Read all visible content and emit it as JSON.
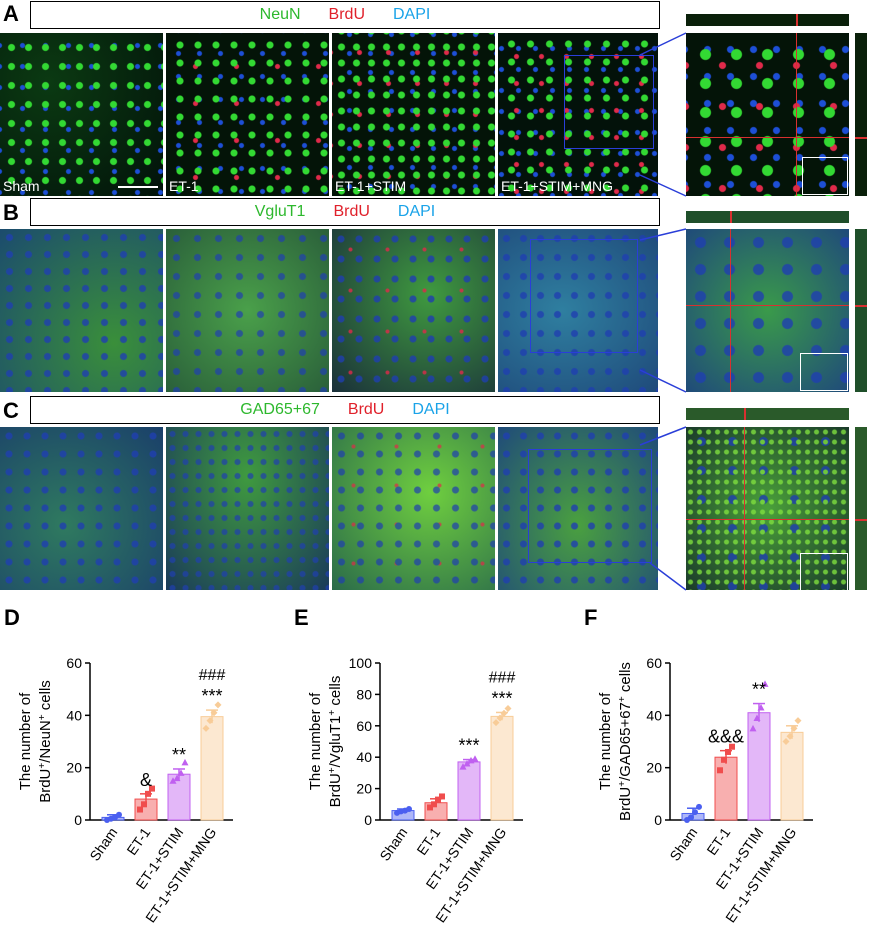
{
  "panels": {
    "A": {
      "letter": "A",
      "legend": [
        "NeuN",
        "BrdU",
        "DAPI"
      ],
      "groups": [
        "Sham",
        "ET-1",
        "ET-1+STIM",
        "ET-1+STIM+MNG"
      ]
    },
    "B": {
      "letter": "B",
      "legend": [
        "VgluT1",
        "BrdU",
        "DAPI"
      ]
    },
    "C": {
      "letter": "C",
      "legend": [
        "GAD65+67",
        "BrdU",
        "DAPI"
      ]
    }
  },
  "colors": {
    "green_label": "#2db82d",
    "red_label": "#e0212b",
    "blue_label": "#1aa3e8",
    "sham": "#4a5ff0",
    "et1": "#f04d4d",
    "stim": "#c060f0",
    "mng": "#f8cc98"
  },
  "chart_data": [
    {
      "letter": "D",
      "type": "bar",
      "categories": [
        "Sham",
        "ET-1",
        "ET-1+STIM",
        "ET-1+STIM+MNG"
      ],
      "values": [
        1,
        8,
        17.5,
        39.5
      ],
      "errors": [
        1,
        2,
        2,
        2.5
      ],
      "points": [
        [
          0,
          0.5,
          1,
          2
        ],
        [
          4,
          6,
          10,
          12
        ],
        [
          15,
          16,
          18,
          22
        ],
        [
          35,
          38,
          41,
          44
        ]
      ],
      "annotations": [
        "",
        "&",
        "**",
        "***"
      ],
      "top_annotations": [
        "",
        "",
        "",
        "###"
      ],
      "ylabel_l1": "The number of",
      "ylabel_l2_parts": [
        "BrdU",
        "+",
        "/NeuN",
        "+",
        " cells"
      ],
      "ylim": [
        0,
        60
      ],
      "yticks": [
        "0",
        "20",
        "40",
        "60"
      ]
    },
    {
      "letter": "E",
      "type": "bar",
      "categories": [
        "Sham",
        "ET-1",
        "ET-1+STIM",
        "ET-1+STIM+MNG"
      ],
      "values": [
        6,
        11,
        37,
        66
      ],
      "errors": [
        1,
        2.5,
        1.5,
        2.5
      ],
      "points": [
        [
          4.5,
          5.5,
          6,
          7
        ],
        [
          8,
          10,
          13,
          15
        ],
        [
          34,
          36,
          38,
          39
        ],
        [
          62,
          65,
          68,
          71
        ]
      ],
      "annotations": [
        "",
        "",
        "***",
        "***"
      ],
      "top_annotations": [
        "",
        "",
        "",
        "###"
      ],
      "ylabel_l1": "The number of",
      "ylabel_l2_parts": [
        "BrdU",
        "+",
        "/VgluT1",
        "+",
        " cells"
      ],
      "ylim": [
        0,
        100
      ],
      "yticks": [
        "0",
        "20",
        "40",
        "60",
        "80",
        "100"
      ]
    },
    {
      "letter": "F",
      "type": "bar",
      "categories": [
        "Sham",
        "ET-1",
        "ET-1+STIM",
        "ET-1+STIM+MNG"
      ],
      "values": [
        2.5,
        24,
        41,
        33.5
      ],
      "errors": [
        2,
        2.5,
        3.5,
        2.5
      ],
      "points": [
        [
          0,
          1,
          3,
          5
        ],
        [
          19,
          23,
          26,
          28
        ],
        [
          35,
          39,
          43,
          52
        ],
        [
          30,
          32,
          35,
          38
        ]
      ],
      "annotations": [
        "",
        "&&&",
        "**",
        ""
      ],
      "top_annotations": [
        "",
        "",
        "",
        ""
      ],
      "ylabel_l1": "The number of",
      "ylabel_l2_parts": [
        "BrdU",
        "+",
        "/GAD65+67",
        "+",
        " cells"
      ],
      "ylim": [
        0,
        60
      ],
      "yticks": [
        "0",
        "20",
        "40",
        "60"
      ]
    }
  ]
}
